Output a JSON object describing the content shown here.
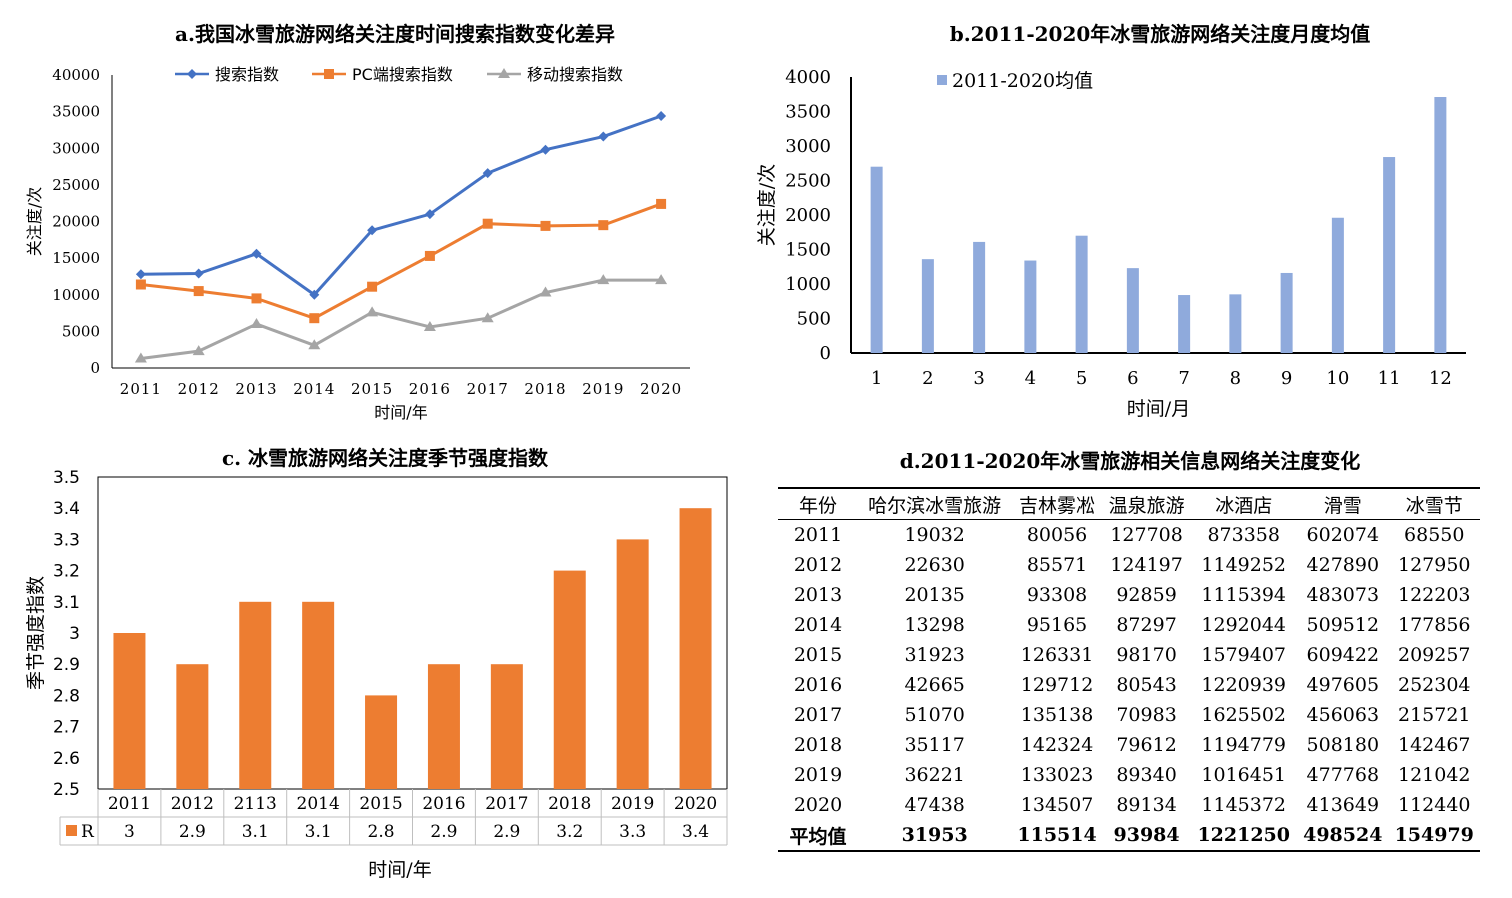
{
  "chart_data": [
    {
      "type": "line",
      "title": "a.我国冰雪旅游网络关注度时间搜索指数变化差异",
      "xlabel": "时间/年",
      "ylabel": "关注度/次",
      "ylim": [
        0,
        40000
      ],
      "yticks": [
        0,
        5000,
        10000,
        15000,
        20000,
        25000,
        30000,
        35000,
        40000
      ],
      "categories": [
        "2011",
        "2012",
        "2013",
        "2014",
        "2015",
        "2016",
        "2017",
        "2018",
        "2019",
        "2020"
      ],
      "legend_position": "top",
      "series": [
        {
          "name": "搜索指数",
          "color": "#4472c4",
          "marker": "diamond",
          "values": [
            12800,
            12900,
            15600,
            10000,
            18800,
            21000,
            26600,
            29800,
            31600,
            34400
          ]
        },
        {
          "name": "PC端搜索指数",
          "color": "#ed7d31",
          "marker": "square",
          "values": [
            11400,
            10500,
            9500,
            6800,
            11100,
            15300,
            19700,
            19400,
            19500,
            22400
          ]
        },
        {
          "name": "移动搜索指数",
          "color": "#a5a5a5",
          "marker": "triangle",
          "values": [
            1300,
            2300,
            6000,
            3100,
            7600,
            5600,
            6800,
            10300,
            12000,
            12000
          ]
        }
      ]
    },
    {
      "type": "bar",
      "title": "b.2011-2020年冰雪旅游网络关注度月度均值",
      "xlabel": "时间/月",
      "ylabel": "关注度/次",
      "ylim": [
        0,
        4000
      ],
      "yticks": [
        0,
        500,
        1000,
        1500,
        2000,
        2500,
        3000,
        3500,
        4000
      ],
      "categories": [
        "1",
        "2",
        "3",
        "4",
        "5",
        "6",
        "7",
        "8",
        "9",
        "10",
        "11",
        "12"
      ],
      "legend_position": "top-left",
      "series": [
        {
          "name": "2011-2020均值",
          "color": "#8faadc",
          "values": [
            2700,
            1360,
            1610,
            1340,
            1700,
            1230,
            840,
            850,
            1160,
            1960,
            2840,
            3710
          ]
        }
      ]
    },
    {
      "type": "bar",
      "title": "c. 冰雪旅游网络关注度季节强度指数",
      "xlabel": "时间/年",
      "ylabel": "季节强度指数",
      "ylim": [
        2.5,
        3.5
      ],
      "yticks": [
        "2.5",
        "2.6",
        "2.7",
        "2.8",
        "2.9",
        "3",
        "3.1",
        "3.2",
        "3.3",
        "3.4",
        "3.5"
      ],
      "categories": [
        "2011",
        "2012",
        "2113",
        "2014",
        "2015",
        "2016",
        "2017",
        "2018",
        "2019",
        "2020"
      ],
      "series": [
        {
          "name": "R",
          "color": "#ed7d31",
          "values": [
            3,
            2.9,
            3.1,
            3.1,
            2.8,
            2.9,
            2.9,
            3.2,
            3.3,
            3.4
          ],
          "labels": [
            "3",
            "2.9",
            "3.1",
            "3.1",
            "2.8",
            "2.9",
            "2.9",
            "3.2",
            "3.3",
            "3.4"
          ]
        }
      ]
    },
    {
      "type": "table",
      "title": "d.2011-2020年冰雪旅游相关信息网络关注度变化",
      "columns": [
        "年份",
        "哈尔滨冰雪旅游",
        "吉林雾凇",
        "温泉旅游",
        "冰酒店",
        "滑雪",
        "冰雪节"
      ],
      "rows": [
        [
          "2011",
          "19032",
          "80056",
          "127708",
          "873358",
          "602074",
          "68550"
        ],
        [
          "2012",
          "22630",
          "85571",
          "124197",
          "1149252",
          "427890",
          "127950"
        ],
        [
          "2013",
          "20135",
          "93308",
          "92859",
          "1115394",
          "483073",
          "122203"
        ],
        [
          "2014",
          "13298",
          "95165",
          "87297",
          "1292044",
          "509512",
          "177856"
        ],
        [
          "2015",
          "31923",
          "126331",
          "98170",
          "1579407",
          "609422",
          "209257"
        ],
        [
          "2016",
          "42665",
          "129712",
          "80543",
          "1220939",
          "497605",
          "252304"
        ],
        [
          "2017",
          "51070",
          "135138",
          "70983",
          "1625502",
          "456063",
          "215721"
        ],
        [
          "2018",
          "35117",
          "142324",
          "79612",
          "1194779",
          "508180",
          "142467"
        ],
        [
          "2019",
          "36221",
          "133023",
          "89340",
          "1016451",
          "477768",
          "121042"
        ],
        [
          "2020",
          "47438",
          "134507",
          "89134",
          "1145372",
          "413649",
          "112440"
        ]
      ],
      "summary_row": [
        "平均值",
        "31953",
        "115514",
        "93984",
        "1221250",
        "498524",
        "154979"
      ]
    }
  ]
}
